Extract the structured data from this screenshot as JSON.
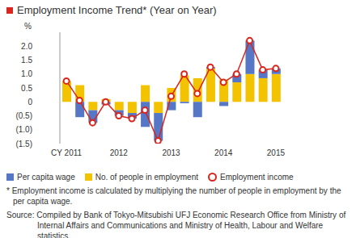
{
  "chart_data": {
    "type": "bar",
    "title": "Employment Income Trend* (Year on Year)",
    "y_label": "%",
    "categories": [
      "CY 2011",
      null,
      null,
      null,
      "2012",
      null,
      null,
      null,
      "2013",
      null,
      null,
      null,
      "2014",
      null,
      null,
      null,
      "2015"
    ],
    "series": [
      {
        "name": "Per capita wage",
        "color": "#5577c5",
        "type": "bar",
        "values": [
          0.0,
          -0.55,
          -0.45,
          -0.1,
          -0.2,
          -0.2,
          -0.9,
          -1.0,
          -0.3,
          -0.05,
          -0.55,
          0.05,
          -0.15,
          0.3,
          1.2,
          0.3,
          0.2
        ]
      },
      {
        "name": "No. of people in employment",
        "color": "#f4c300",
        "type": "bar",
        "values": [
          0.75,
          0.6,
          -0.3,
          0.1,
          -0.3,
          -0.4,
          0.6,
          -0.4,
          0.5,
          0.95,
          0.85,
          1.2,
          0.8,
          0.7,
          1.0,
          0.85,
          1.0
        ]
      },
      {
        "name": "Employment income",
        "color": "#d9261c",
        "type": "line",
        "marker": "circle",
        "values": [
          0.75,
          0.05,
          -0.75,
          0.0,
          -0.5,
          -0.6,
          -0.3,
          -1.4,
          0.2,
          1.0,
          0.3,
          1.25,
          0.7,
          1.0,
          2.2,
          1.15,
          1.2
        ]
      }
    ],
    "stacked": true,
    "ylim": [
      -1.5,
      2.5
    ],
    "yticks": [
      {
        "value": -1.5,
        "label": "(1.5)"
      },
      {
        "value": -1.0,
        "label": "(1.0)"
      },
      {
        "value": -0.5,
        "label": "(0.5)"
      },
      0,
      {
        "value": 0.5,
        "label": "0.5"
      },
      {
        "value": 1.0,
        "label": "1.0"
      },
      {
        "value": 1.5,
        "label": "1.5"
      },
      {
        "value": 2.0,
        "label": "2.0"
      }
    ],
    "grid": false,
    "annotations": [
      "* Employment income is calculated by multiplying the number of people in employment by the per capita wage.",
      "Source:  Compiled by Bank of Tokyo-Mitsubishi UFJ Economic Research Office from Ministry of Internal Affairs and Communications and Ministry of Health, Labour and Welfare statistics."
    ]
  }
}
